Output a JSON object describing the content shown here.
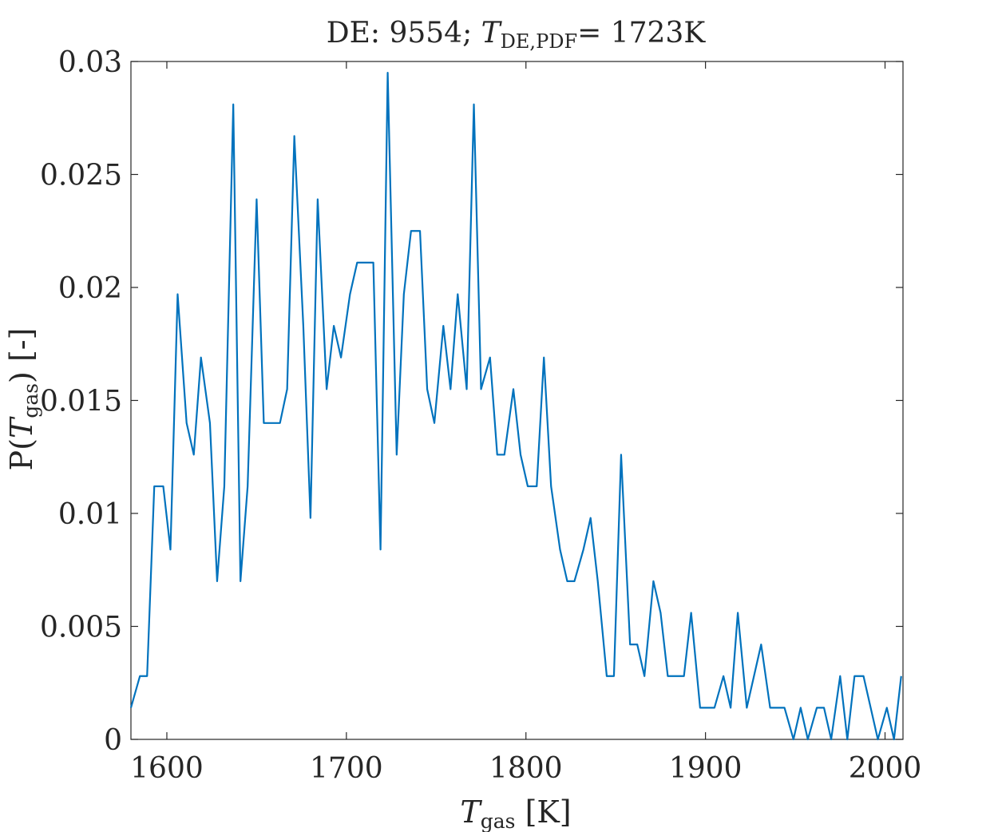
{
  "chart_data": {
    "type": "line",
    "title": {
      "prefix": "DE: 9554; ",
      "var": "T",
      "sub": "DE,PDF",
      "suffix": "= 1723K"
    },
    "xlabel": {
      "var": "T",
      "sub": "gas",
      "suffix": " [K]"
    },
    "ylabel": {
      "prefix": "P(",
      "var": "T",
      "sub": "gas",
      "suffix": ") [-]"
    },
    "xlim": [
      1580,
      2010
    ],
    "ylim": [
      0,
      0.03
    ],
    "xticks": [
      1600,
      1700,
      1800,
      1900,
      2000
    ],
    "yticks": [
      0,
      0.005,
      0.01,
      0.015,
      0.02,
      0.025,
      0.03
    ],
    "xtick_labels": [
      "1600",
      "1700",
      "1800",
      "1900",
      "2000"
    ],
    "ytick_labels": [
      "0",
      "0.005",
      "0.01",
      "0.015",
      "0.02",
      "0.025",
      "0.03"
    ],
    "grid": false,
    "colors": {
      "line": "#0072BD",
      "axes": "#262626"
    },
    "series": [
      {
        "x": [
          1580,
          1585,
          1589,
          1593,
          1598,
          1602,
          1606,
          1611,
          1615,
          1619,
          1624,
          1628,
          1632,
          1637,
          1641,
          1645,
          1650,
          1654,
          1658,
          1663,
          1667,
          1671,
          1676,
          1680,
          1684,
          1689,
          1693,
          1697,
          1702,
          1706,
          1710,
          1715,
          1719,
          1723,
          1728,
          1732,
          1736,
          1741,
          1745,
          1749,
          1754,
          1758,
          1762,
          1767,
          1771,
          1775,
          1780,
          1784,
          1788,
          1793,
          1797,
          1801,
          1806,
          1810,
          1814,
          1819,
          1823,
          1827,
          1832,
          1836,
          1840,
          1845,
          1849,
          1853,
          1858,
          1862,
          1866,
          1871,
          1875,
          1879,
          1884,
          1888,
          1892,
          1897,
          1901,
          1905,
          1910,
          1914,
          1918,
          1923,
          1927,
          1931,
          1936,
          1940,
          1944,
          1949,
          1953,
          1957,
          1962,
          1966,
          1970,
          1975,
          1979,
          1983,
          1988,
          1992,
          1996,
          2001,
          2005,
          2009
        ],
        "y": [
          0.0014,
          0.0028,
          0.0028,
          0.0112,
          0.0112,
          0.0084,
          0.0197,
          0.014,
          0.0126,
          0.0169,
          0.014,
          0.007,
          0.0112,
          0.0281,
          0.007,
          0.0112,
          0.0239,
          0.014,
          0.014,
          0.014,
          0.0155,
          0.0267,
          0.0183,
          0.0098,
          0.0239,
          0.0155,
          0.0183,
          0.0169,
          0.0197,
          0.0211,
          0.0211,
          0.0211,
          0.0084,
          0.0295,
          0.0126,
          0.0197,
          0.0225,
          0.0225,
          0.0155,
          0.014,
          0.0183,
          0.0155,
          0.0197,
          0.0155,
          0.0281,
          0.0155,
          0.0169,
          0.0126,
          0.0126,
          0.0155,
          0.0126,
          0.0112,
          0.0112,
          0.0169,
          0.0112,
          0.0084,
          0.007,
          0.007,
          0.0084,
          0.0098,
          0.007,
          0.0028,
          0.0028,
          0.0126,
          0.0042,
          0.0042,
          0.0028,
          0.007,
          0.0056,
          0.0028,
          0.0028,
          0.0028,
          0.0056,
          0.0014,
          0.0014,
          0.0014,
          0.0028,
          0.0014,
          0.0056,
          0.0014,
          0.0028,
          0.0042,
          0.0014,
          0.0014,
          0.0014,
          0.0,
          0.0014,
          0.0,
          0.0014,
          0.0014,
          0.0,
          0.0028,
          0.0,
          0.0028,
          0.0028,
          0.0014,
          0.0,
          0.0014,
          0.0,
          0.0028
        ]
      }
    ]
  }
}
